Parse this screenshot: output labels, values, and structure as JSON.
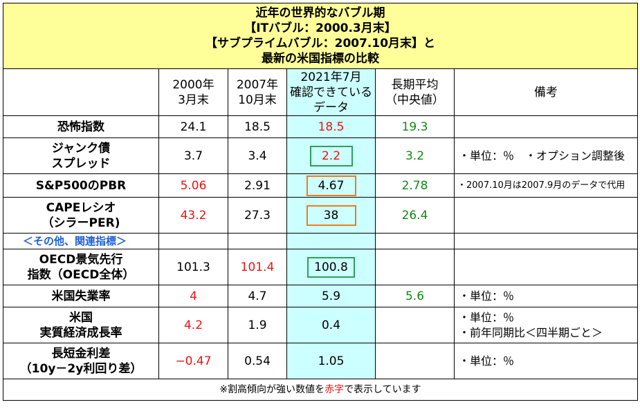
{
  "title": {
    "line1": "近年の世界的なバブル期",
    "line2": "【ITバブル：2000.3月末】",
    "line3": "【サブプライムバブル：2007.10月末】と",
    "line4": "最新の米国指標の比較"
  },
  "header": {
    "col2000": [
      "2000年",
      "3月末"
    ],
    "col2007": [
      "2007年",
      "10月末"
    ],
    "col2021": [
      "2021年7月",
      "確認できている",
      "データ"
    ],
    "colAvg": [
      "長期平均",
      "（中央値）"
    ],
    "colNote": "備考"
  },
  "rows": {
    "fear": {
      "label": [
        "恐怖指数"
      ],
      "v2000": "24.1",
      "v2007": "18.5",
      "v2021": "18.5",
      "avg": "19.3",
      "note": ""
    },
    "junk": {
      "label": [
        "ジャンク債",
        "スプレッド"
      ],
      "v2000": "3.7",
      "v2007": "3.4",
      "v2021": "2.2",
      "avg": "3.2",
      "note": "・単位：％　・オプション調整後"
    },
    "pbr": {
      "label": [
        "S&P500のPBR"
      ],
      "v2000": "5.06",
      "v2007": "2.91",
      "v2021": "4.67",
      "avg": "2.78",
      "note": "・2007.10月は2007.9月のデータで代用"
    },
    "cape": {
      "label": [
        "CAPEレシオ",
        "（シラーPER)"
      ],
      "v2000": "43.2",
      "v2007": "27.3",
      "v2021": "38",
      "avg": "26.4",
      "note": ""
    },
    "oecd": {
      "label": [
        "OECD景気先行",
        "指数（OECD全体）"
      ],
      "v2000": "101.3",
      "v2007": "101.4",
      "v2021": "100.8",
      "avg": "",
      "note": ""
    },
    "unemp": {
      "label": [
        "米国失業率"
      ],
      "v2000": "4",
      "v2007": "4.7",
      "v2021": "5.9",
      "avg": "5.6",
      "note": "・単位：％"
    },
    "gdp": {
      "label": [
        "米国",
        "実質経済成長率"
      ],
      "v2000": "4.2",
      "v2007": "1.9",
      "v2021": "0.4",
      "avg": "",
      "note": [
        "・単位：％",
        "・前年同期比＜四半期ごと＞"
      ]
    },
    "spread": {
      "label": [
        "長短金利差",
        "（10y－2y利回り差）"
      ],
      "v2000": "−0.47",
      "v2007": "0.54",
      "v2021": "1.05",
      "avg": "",
      "note": "・単位：％"
    }
  },
  "section_label": "＜その他、関連指標＞",
  "footer": {
    "pre": "※割高傾向が強い数値を",
    "red": "赤字",
    "post": "で表示しています"
  },
  "colors": {
    "title_bg": "#ffff99",
    "current_bg": "#ccffff",
    "red": "#ee1111",
    "green": "#118811",
    "box_green": "#2e9e5a",
    "box_orange": "#f07a1a",
    "section_blue": "#1f5fd6"
  }
}
